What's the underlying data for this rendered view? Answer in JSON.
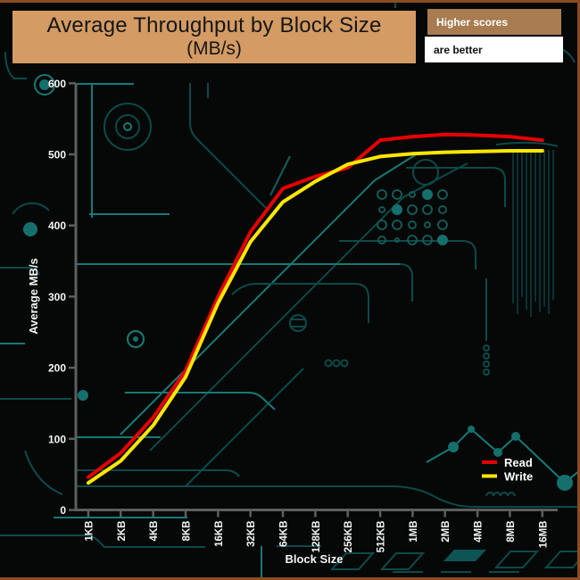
{
  "header": {
    "title_line1": "Average Throughput by Block Size",
    "title_line2": "(MB/s)",
    "badge_primary": "Higher scores",
    "badge_secondary": "are better"
  },
  "chart_data": {
    "type": "line",
    "title": "Average Throughput by Block Size (MB/s)",
    "xlabel": "Block Size",
    "ylabel": "Average MB/s",
    "categories": [
      "1KB",
      "2KB",
      "4KB",
      "8KB",
      "16KB",
      "32KB",
      "64KB",
      "128KB",
      "256KB",
      "512KB",
      "1MB",
      "2MB",
      "4MB",
      "8MB",
      "16MB"
    ],
    "series": [
      {
        "name": "Read",
        "color": "#e60000",
        "values": [
          46,
          80,
          130,
          196,
          300,
          391,
          452,
          469,
          481,
          520,
          525,
          528,
          527,
          525,
          520
        ]
      },
      {
        "name": "Write",
        "color": "#ffe700",
        "values": [
          38,
          69,
          119,
          187,
          291,
          377,
          433,
          462,
          486,
          497,
          501,
          503,
          504,
          505,
          505
        ]
      }
    ],
    "ylim": [
      0,
      600
    ],
    "yticks": [
      0,
      100,
      200,
      300,
      400,
      500,
      600
    ],
    "grid": false,
    "legend_position": "bottom-right",
    "note": "Higher scores are better"
  },
  "colors": {
    "background": "#050807",
    "axis": "#5e5e5e",
    "tick_text": "#f5f5f5",
    "title_box_bg": "#d49b64",
    "title_text": "#161616",
    "badge_primary_bg": "#a87c50",
    "badge_primary_text": "#ffffff",
    "badge_secondary_bg": "#ffffff",
    "badge_secondary_text": "#111111",
    "frame_border": "#8a4d22",
    "circuit_dim": "#0c4a4a",
    "circuit_bright": "#177a77",
    "read_line": "#e60000",
    "write_line": "#ffe700"
  }
}
